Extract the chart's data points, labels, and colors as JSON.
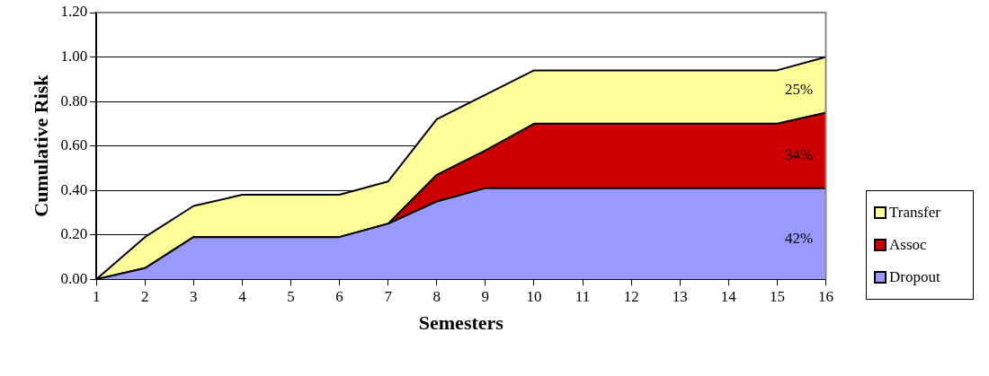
{
  "chart_data": {
    "type": "area",
    "stacked": true,
    "xlabel": "Semesters",
    "ylabel": "Cumulative Risk",
    "x": [
      1,
      2,
      3,
      4,
      5,
      6,
      7,
      8,
      9,
      10,
      11,
      12,
      13,
      14,
      15,
      16
    ],
    "series": [
      {
        "name": "Dropout",
        "color": "#9999ff",
        "values": [
          0,
          0.05,
          0.19,
          0.19,
          0.19,
          0.19,
          0.25,
          0.35,
          0.41,
          0.41,
          0.41,
          0.41,
          0.41,
          0.41,
          0.41,
          0.41
        ]
      },
      {
        "name": "Assoc",
        "color": "#cc0000",
        "values": [
          0,
          0,
          0,
          0,
          0,
          0,
          0,
          0.12,
          0.17,
          0.29,
          0.29,
          0.29,
          0.29,
          0.29,
          0.29,
          0.34
        ]
      },
      {
        "name": "Transfer",
        "color": "#ffff99",
        "values": [
          0,
          0.14,
          0.14,
          0.19,
          0.19,
          0.19,
          0.19,
          0.25,
          0.25,
          0.24,
          0.24,
          0.24,
          0.24,
          0.24,
          0.24,
          0.25
        ]
      }
    ],
    "xlim": [
      1,
      16
    ],
    "xticks": [
      1,
      2,
      3,
      4,
      5,
      6,
      7,
      8,
      9,
      10,
      11,
      12,
      13,
      14,
      15,
      16
    ],
    "ylim": [
      0,
      1.2
    ],
    "yticks": [
      {
        "value": 0,
        "label": "0.00"
      },
      {
        "value": 0.2,
        "label": "0.20"
      },
      {
        "value": 0.4,
        "label": "0.40"
      },
      {
        "value": 0.6,
        "label": "0.60"
      },
      {
        "value": 0.8,
        "label": "0.80"
      },
      {
        "value": 1,
        "label": "1.00"
      },
      {
        "value": 1.2,
        "label": "1.20"
      }
    ],
    "grid": "y",
    "legend": "right",
    "annotations": [
      "42%",
      "34%",
      "25%"
    ]
  }
}
